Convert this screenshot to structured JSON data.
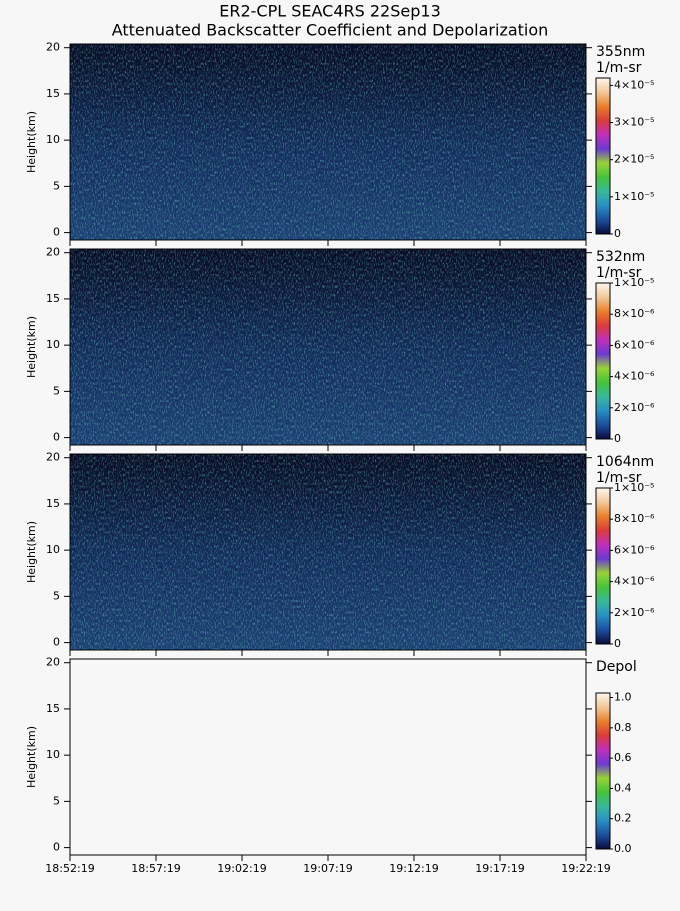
{
  "title": "ER2-CPL SEAC4RS 22Sep13",
  "subtitle": "Attenuated Backscatter Coefficient and Depolarization",
  "xaxis": {
    "xlim": [
      "18:52:19",
      "19:22:19"
    ],
    "xticks": [
      "18:52:19",
      "18:57:19",
      "19:02:19",
      "19:07:19",
      "19:12:19",
      "19:17:19",
      "19:22:19"
    ]
  },
  "colormap": [
    "#0b0b3c",
    "#1c4f9c",
    "#2a8fc4",
    "#39b89a",
    "#46c23c",
    "#9ad23a",
    "#6b3ad0",
    "#c030b8",
    "#d83c3c",
    "#e8802c",
    "#f2c89a",
    "#fff6ec"
  ],
  "chart_data": [
    {
      "type": "heatmap",
      "background": "dark",
      "ylabel": "Height(km)",
      "ylim": [
        -0.8,
        20.4
      ],
      "yticks": [
        0,
        5,
        10,
        15,
        20
      ],
      "colorbar": {
        "label": [
          "355nm",
          "1/m-sr"
        ],
        "lim": [
          0,
          4.2e-05
        ],
        "ticks": [
          0,
          {
            "value": 1e-05,
            "label": "1×10⁻⁵"
          },
          {
            "value": 2e-05,
            "label": "2×10⁻⁵"
          },
          {
            "value": 3e-05,
            "label": "3×10⁻⁵"
          },
          {
            "value": 4e-05,
            "label": "4×10⁻⁵"
          }
        ]
      }
    },
    {
      "type": "heatmap",
      "background": "dark",
      "ylabel": "Height(km)",
      "ylim": [
        -0.8,
        20.4
      ],
      "yticks": [
        0,
        5,
        10,
        15,
        20
      ],
      "colorbar": {
        "label": [
          "532nm",
          "1/m-sr"
        ],
        "lim": [
          0,
          1e-05
        ],
        "ticks": [
          0,
          {
            "value": 2e-06,
            "label": "2×10⁻⁶"
          },
          {
            "value": 4e-06,
            "label": "4×10⁻⁶"
          },
          {
            "value": 6e-06,
            "label": "6×10⁻⁶"
          },
          {
            "value": 8e-06,
            "label": "8×10⁻⁶"
          },
          {
            "value": 1e-05,
            "label": "1×10⁻⁵"
          }
        ]
      }
    },
    {
      "type": "heatmap",
      "background": "dark",
      "ylabel": "Height(km)",
      "ylim": [
        -0.8,
        20.4
      ],
      "yticks": [
        0,
        5,
        10,
        15,
        20
      ],
      "colorbar": {
        "label": [
          "1064nm",
          "1/m-sr"
        ],
        "lim": [
          0,
          1e-05
        ],
        "ticks": [
          0,
          {
            "value": 2e-06,
            "label": "2×10⁻⁶"
          },
          {
            "value": 4e-06,
            "label": "4×10⁻⁶"
          },
          {
            "value": 6e-06,
            "label": "6×10⁻⁶"
          },
          {
            "value": 8e-06,
            "label": "8×10⁻⁶"
          },
          {
            "value": 1e-05,
            "label": "1×10⁻⁵"
          }
        ]
      }
    },
    {
      "type": "heatmap",
      "background": "light",
      "ylabel": "Height(km)",
      "ylim": [
        -0.8,
        20.4
      ],
      "yticks": [
        0,
        5,
        10,
        15,
        20
      ],
      "colorbar": {
        "label": [
          "Depol"
        ],
        "lim": [
          0,
          1.03
        ],
        "ticks": [
          {
            "value": 0,
            "label": "0.0"
          },
          0.2,
          0.4,
          0.6,
          0.8,
          {
            "value": 1,
            "label": "1.0"
          }
        ]
      }
    }
  ]
}
